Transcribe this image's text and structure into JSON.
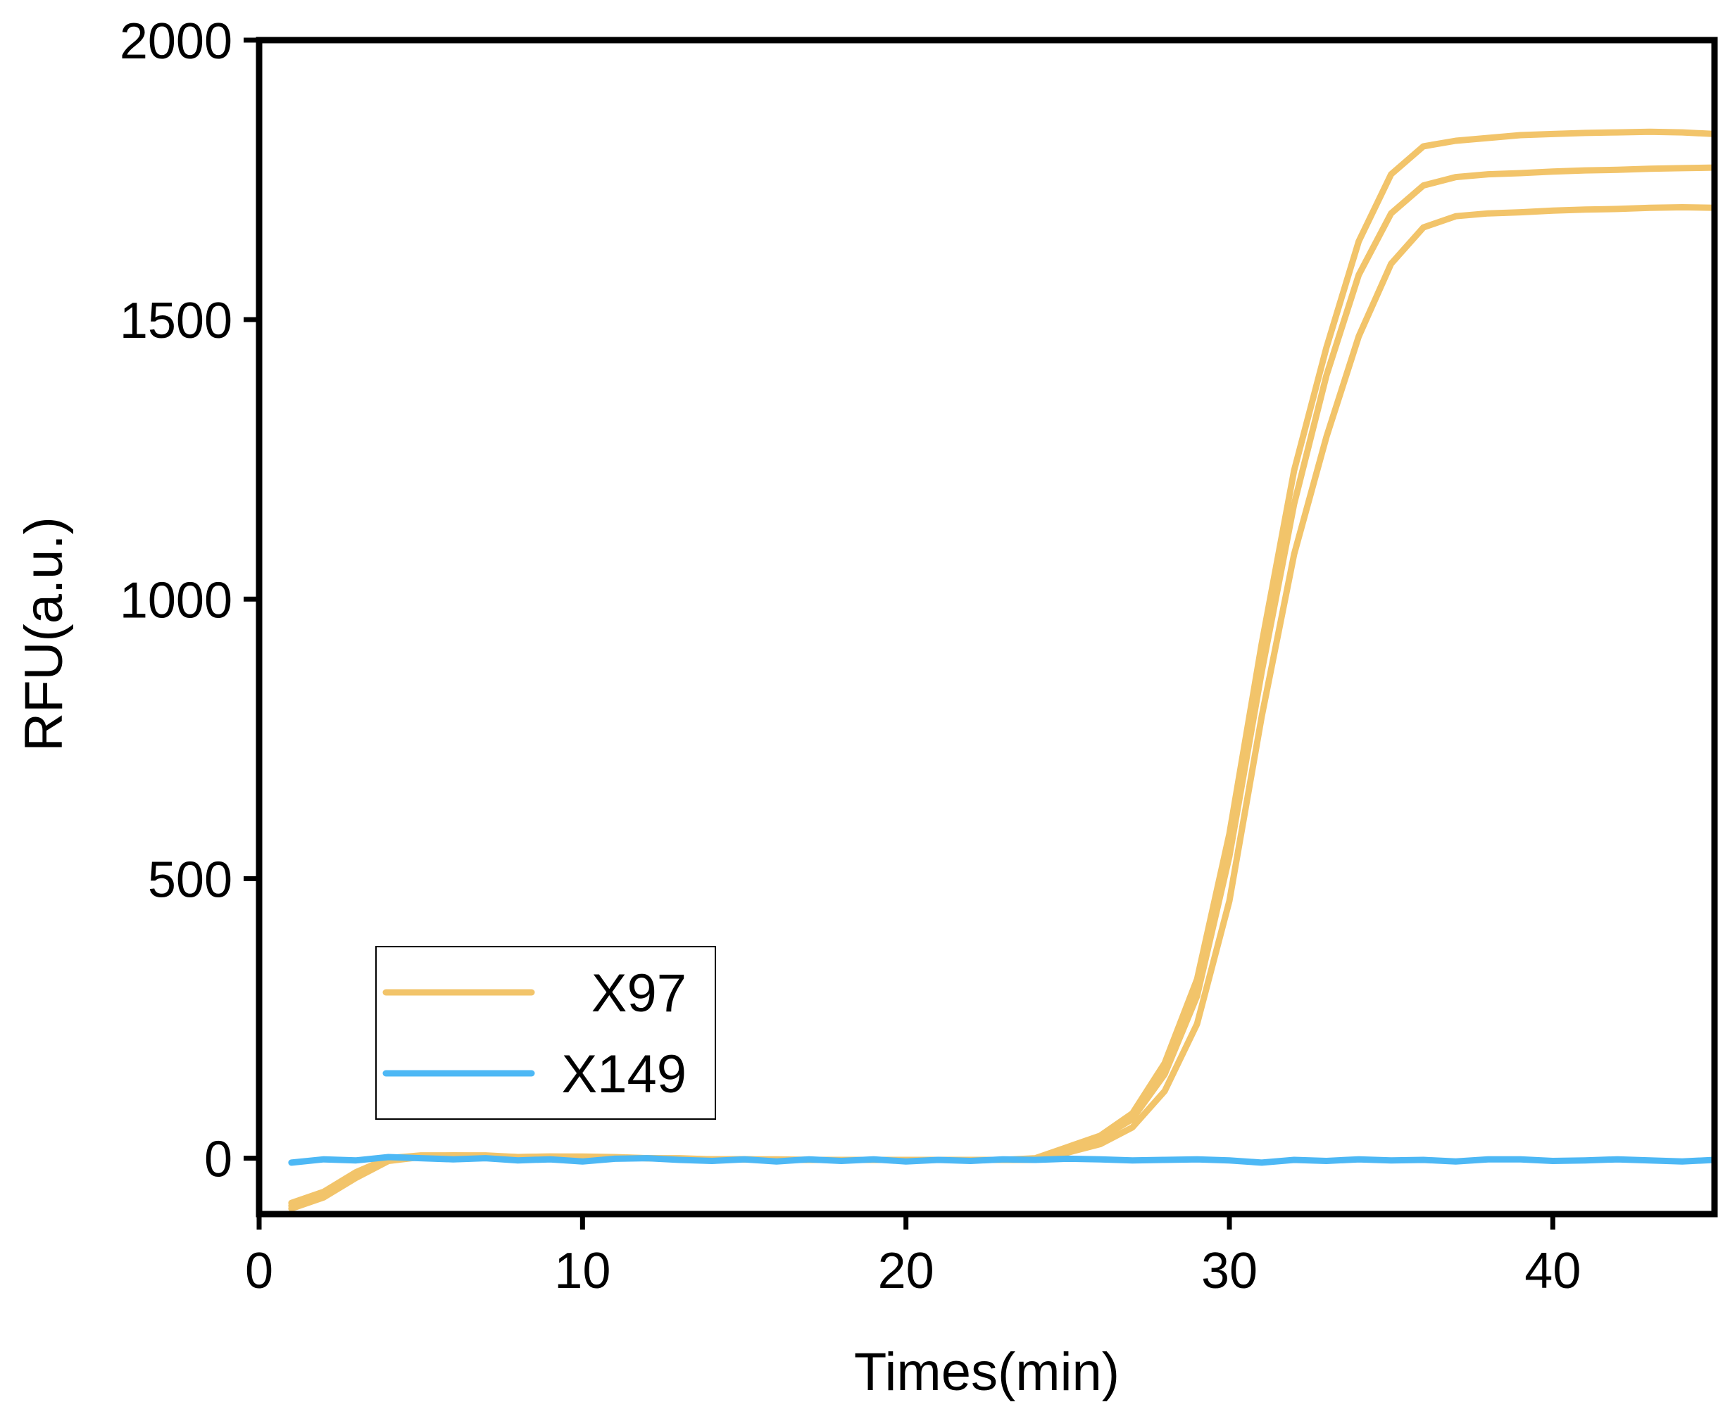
{
  "chart_data": {
    "type": "line",
    "xlabel": "Times(min)",
    "ylabel": "RFU(a.u.)",
    "xlim": [
      0,
      45
    ],
    "ylim": [
      -100,
      2000
    ],
    "xticks": [
      0,
      10,
      20,
      30,
      40
    ],
    "yticks": [
      0,
      500,
      1000,
      1500,
      2000
    ],
    "grid": false,
    "legend": {
      "position": "bottom-left",
      "entries": [
        "X97",
        "X149"
      ]
    },
    "colors": {
      "X97": "#F2C46A",
      "X149": "#4DB8F5"
    },
    "x": [
      1,
      2,
      3,
      4,
      5,
      6,
      7,
      8,
      9,
      10,
      11,
      12,
      13,
      14,
      15,
      16,
      17,
      18,
      19,
      20,
      21,
      22,
      23,
      24,
      25,
      26,
      27,
      28,
      29,
      30,
      31,
      32,
      33,
      34,
      35,
      36,
      37,
      38,
      39,
      40,
      41,
      42,
      43,
      44,
      45
    ],
    "series": [
      {
        "name": "X97",
        "group": "X97",
        "values": [
          -80,
          -60,
          -25,
          0,
          5,
          5,
          5,
          2,
          3,
          3,
          2,
          0,
          0,
          -2,
          -2,
          -2,
          -3,
          -3,
          -3,
          -3,
          -3,
          -3,
          -3,
          0,
          20,
          40,
          80,
          170,
          320,
          580,
          920,
          1230,
          1450,
          1640,
          1760,
          1810,
          1820,
          1825,
          1830,
          1832,
          1834,
          1835,
          1836,
          1835,
          1832
        ]
      },
      {
        "name": "X97",
        "group": "X97",
        "values": [
          -85,
          -65,
          -30,
          -2,
          3,
          5,
          4,
          2,
          3,
          2,
          1,
          0,
          -1,
          -2,
          -2,
          -3,
          -3,
          -3,
          -3,
          -3,
          -3,
          -3,
          -3,
          -2,
          15,
          35,
          70,
          150,
          290,
          540,
          870,
          1170,
          1400,
          1580,
          1690,
          1740,
          1755,
          1760,
          1762,
          1765,
          1767,
          1768,
          1770,
          1771,
          1772
        ]
      },
      {
        "name": "X97",
        "group": "X97",
        "values": [
          -90,
          -70,
          -35,
          -5,
          2,
          4,
          3,
          1,
          2,
          2,
          1,
          0,
          -1,
          -2,
          -2,
          -3,
          -3,
          -3,
          -3,
          -3,
          -3,
          -3,
          -3,
          -3,
          10,
          25,
          55,
          120,
          240,
          460,
          790,
          1080,
          1290,
          1470,
          1600,
          1665,
          1685,
          1690,
          1692,
          1695,
          1697,
          1698,
          1700,
          1701,
          1700
        ]
      },
      {
        "name": "X149",
        "group": "X149",
        "values": [
          -8,
          -2,
          -4,
          2,
          0,
          -2,
          0,
          -4,
          -2,
          -6,
          -1,
          0,
          -3,
          -5,
          -2,
          -6,
          -2,
          -5,
          -2,
          -6,
          -3,
          -5,
          -2,
          -3,
          -1,
          -2,
          -4,
          -3,
          -2,
          -4,
          -8,
          -3,
          -5,
          -2,
          -4,
          -3,
          -6,
          -2,
          -2,
          -5,
          -4,
          -2,
          -4,
          -6,
          -3
        ]
      }
    ]
  }
}
